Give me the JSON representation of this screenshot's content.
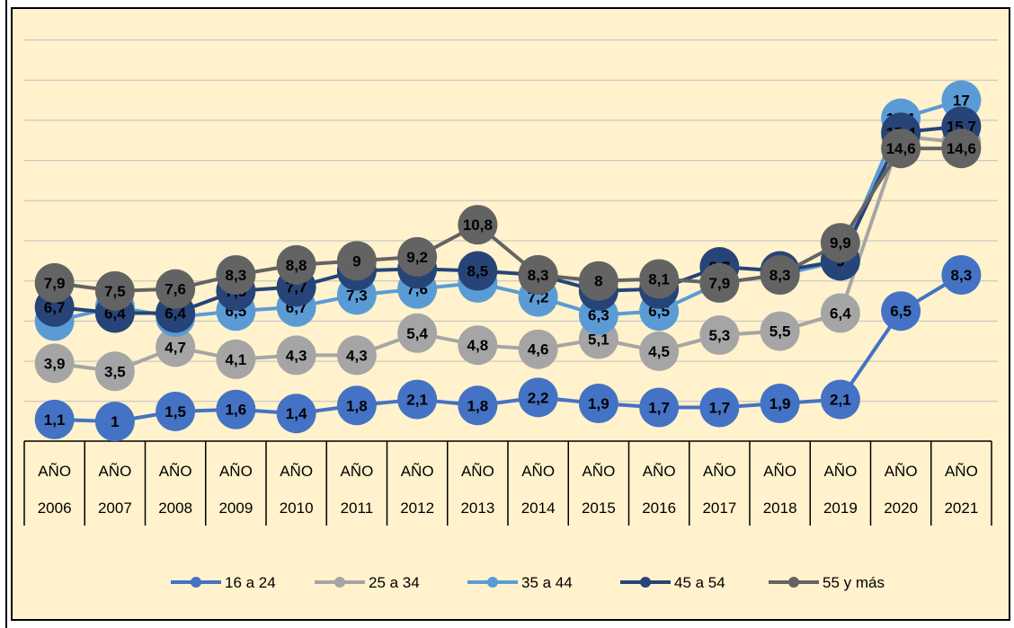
{
  "chart_data": {
    "type": "line",
    "categories": [
      [
        "AÑO",
        "2006"
      ],
      [
        "AÑO",
        "2007"
      ],
      [
        "AÑO",
        "2008"
      ],
      [
        "AÑO",
        "2009"
      ],
      [
        "AÑO",
        "2010"
      ],
      [
        "AÑO",
        "2011"
      ],
      [
        "AÑO",
        "2012"
      ],
      [
        "AÑO",
        "2013"
      ],
      [
        "AÑO",
        "2014"
      ],
      [
        "AÑO",
        "2015"
      ],
      [
        "AÑO",
        "2016"
      ],
      [
        "AÑO",
        "2017"
      ],
      [
        "AÑO",
        "2018"
      ],
      [
        "AÑO",
        "2019"
      ],
      [
        "AÑO",
        "2020"
      ],
      [
        "AÑO",
        "2021"
      ]
    ],
    "ylim": [
      -1,
      20
    ],
    "grid": true,
    "legend_position": "bottom",
    "series": [
      {
        "name": "16 a 24",
        "color": "#4472c4",
        "values": [
          1.1,
          1,
          1.5,
          1.6,
          1.4,
          1.8,
          2.1,
          1.8,
          2.2,
          1.9,
          1.7,
          1.7,
          1.9,
          2.1,
          6.5,
          8.3
        ],
        "labels": [
          "1,1",
          "1",
          "1,5",
          "1,6",
          "1,4",
          "1,8",
          "2,1",
          "1,8",
          "2,2",
          "1,9",
          "1,7",
          "1,7",
          "1,9",
          "2,1",
          "6,5",
          "8,3"
        ]
      },
      {
        "name": "25 a 34",
        "color": "#a5a5a5",
        "values": [
          3.9,
          3.5,
          4.7,
          4.1,
          4.3,
          4.3,
          5.4,
          4.8,
          4.6,
          5.1,
          4.5,
          5.3,
          5.5,
          6.4,
          15.2,
          14.9
        ],
        "labels": [
          "3,9",
          "3,5",
          "4,7",
          "4,1",
          "4,3",
          "4,3",
          "5,4",
          "4,8",
          "4,6",
          "5,1",
          "4,5",
          "5,3",
          "5,5",
          "6,4",
          "15,2",
          "14,9"
        ]
      },
      {
        "name": "35 a 44",
        "color": "#5b9bd5",
        "values": [
          6,
          6.7,
          6.2,
          6.5,
          6.7,
          7.3,
          7.6,
          7.9,
          7.2,
          6.3,
          6.5,
          7.9,
          8.3,
          9,
          16.1,
          17
        ],
        "labels": [
          "6",
          "6,7",
          "6,2",
          "6,5",
          "6,7",
          "7,3",
          "7,6",
          "7,9",
          "7,2",
          "6,3",
          "6,5",
          "7,9",
          "8,3",
          "9",
          "16,1",
          "17"
        ]
      },
      {
        "name": "45 a 54",
        "color": "#264478",
        "values": [
          6.7,
          6.4,
          6.4,
          7.5,
          7.7,
          8.5,
          8.6,
          8.5,
          8.3,
          7.5,
          7.6,
          8.7,
          8.5,
          9,
          15.4,
          15.7
        ],
        "labels": [
          "6,7",
          "6,4",
          "6,4",
          "7,5",
          "7,7",
          "8,5",
          "8,6",
          "8,5",
          "8,3",
          "7,5",
          "7,6",
          "8,7",
          "8,5",
          "9",
          "15,4",
          "15,7"
        ]
      },
      {
        "name": "55 y más",
        "color": "#636363",
        "values": [
          7.9,
          7.5,
          7.6,
          8.3,
          8.8,
          9,
          9.2,
          10.8,
          8.3,
          8,
          8.1,
          7.9,
          8.3,
          9.9,
          14.6,
          14.6
        ],
        "labels": [
          "7,9",
          "7,5",
          "7,6",
          "8,3",
          "8,8",
          "9",
          "9,2",
          "10,8",
          "8,3",
          "8",
          "8,1",
          "7,9",
          "8,3",
          "9,9",
          "14,6",
          "14,6"
        ]
      }
    ]
  }
}
